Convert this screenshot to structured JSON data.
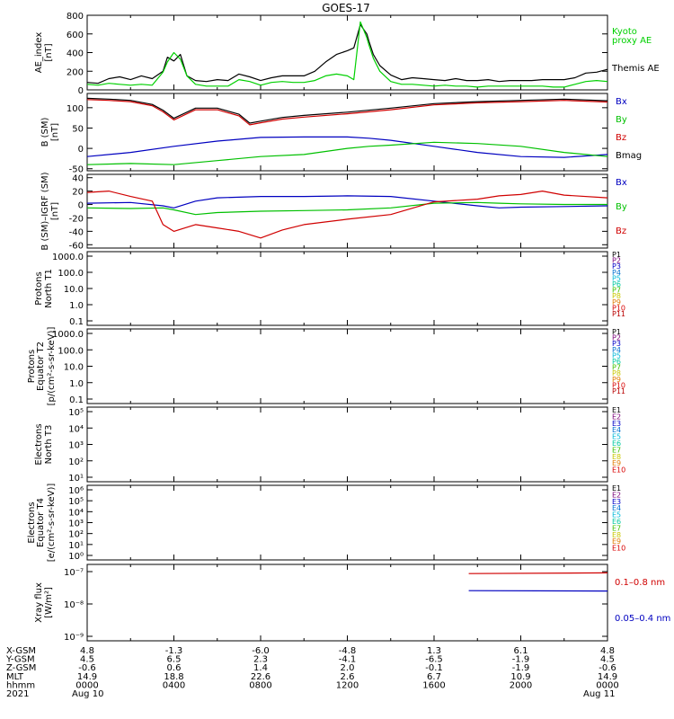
{
  "title": "GOES-17",
  "chart_data": [
    {
      "panel": "ae",
      "type": "line",
      "ylabel": [
        "AE_index",
        "[nT]"
      ],
      "ylim": [
        0,
        800
      ],
      "ticks": [
        0,
        200,
        400,
        600,
        800
      ],
      "tick_labels": [
        "0",
        "200",
        "400",
        "600",
        "800"
      ],
      "x_unit": "hours since 2021 Aug 10 00:00 UT",
      "legend": [
        {
          "lines": [
            "Kyoto",
            "proxy AE"
          ],
          "color": "#00d000"
        },
        {
          "lines": [
            "Themis AE"
          ],
          "color": "#000000"
        }
      ],
      "series": [
        {
          "name": "Themis AE",
          "color": "#000000",
          "x": [
            0,
            0.5,
            1,
            1.5,
            2,
            2.5,
            3,
            3.5,
            3.7,
            4,
            4.3,
            4.6,
            5,
            5.5,
            6,
            6.5,
            7,
            7.5,
            8,
            8.5,
            9,
            9.5,
            10,
            10.5,
            11,
            11.5,
            12,
            12.3,
            12.6,
            12.9,
            13,
            13.2,
            13.5,
            14,
            14.5,
            15,
            15.5,
            16,
            16.5,
            17,
            17.5,
            18,
            18.5,
            19,
            19.5,
            20,
            20.5,
            21,
            21.5,
            22,
            22.5,
            23,
            23.5,
            24
          ],
          "values": [
            80,
            70,
            120,
            140,
            110,
            150,
            120,
            200,
            350,
            310,
            380,
            150,
            100,
            90,
            110,
            100,
            170,
            140,
            100,
            130,
            150,
            150,
            150,
            200,
            300,
            380,
            420,
            450,
            700,
            600,
            520,
            380,
            260,
            160,
            110,
            130,
            120,
            110,
            100,
            120,
            100,
            100,
            110,
            90,
            100,
            100,
            100,
            110,
            110,
            110,
            130,
            180,
            190,
            220
          ]
        },
        {
          "name": "Kyoto proxy AE",
          "color": "#00d000",
          "x": [
            0,
            0.5,
            1,
            1.5,
            2,
            2.5,
            3,
            3.5,
            3.7,
            4,
            4.3,
            4.6,
            5,
            5.5,
            6,
            6.5,
            7,
            7.5,
            8,
            8.5,
            9,
            9.5,
            10,
            10.5,
            11,
            11.5,
            12,
            12.3,
            12.6,
            12.9,
            13,
            13.2,
            13.5,
            14,
            14.5,
            15,
            15.5,
            16,
            16.5,
            17,
            17.5,
            18,
            18.5,
            19,
            19.5,
            20,
            20.5,
            21,
            21.5,
            22,
            22.5,
            23,
            23.5,
            24
          ],
          "values": [
            60,
            50,
            70,
            60,
            50,
            60,
            50,
            190,
            300,
            400,
            330,
            150,
            60,
            40,
            40,
            40,
            110,
            90,
            50,
            80,
            90,
            80,
            80,
            100,
            150,
            170,
            150,
            110,
            730,
            560,
            480,
            340,
            200,
            90,
            60,
            60,
            50,
            40,
            50,
            40,
            40,
            30,
            40,
            40,
            40,
            40,
            40,
            40,
            30,
            30,
            60,
            90,
            100,
            90
          ]
        }
      ]
    },
    {
      "panel": "bsm",
      "type": "line",
      "ylabel": [
        "B (SM)",
        "[nT]"
      ],
      "ylim": [
        -55,
        135
      ],
      "ticks": [
        -50,
        0,
        50,
        100
      ],
      "tick_labels": [
        "-50",
        "0",
        "50",
        "100"
      ],
      "legend": [
        {
          "lines": [
            "Bx"
          ],
          "color": "#0000c0"
        },
        {
          "lines": [
            "By"
          ],
          "color": "#00c000"
        },
        {
          "lines": [
            "Bz"
          ],
          "color": "#d00000"
        },
        {
          "lines": [
            "Bmag"
          ],
          "color": "#000000"
        }
      ],
      "series": [
        {
          "name": "Bx",
          "color": "#0000c0",
          "x": [
            0,
            2,
            4,
            6,
            8,
            10,
            12,
            13,
            14,
            16,
            18,
            20,
            22,
            24
          ],
          "values": [
            -20,
            -10,
            5,
            18,
            27,
            28,
            28,
            25,
            20,
            5,
            -10,
            -20,
            -22,
            -15
          ]
        },
        {
          "name": "By",
          "color": "#00c000",
          "x": [
            0,
            2,
            4,
            6,
            8,
            10,
            12,
            13,
            14,
            16,
            18,
            20,
            22,
            24
          ],
          "values": [
            -40,
            -37,
            -40,
            -30,
            -20,
            -15,
            0,
            5,
            8,
            15,
            12,
            5,
            -10,
            -20
          ]
        },
        {
          "name": "Bz",
          "color": "#d00000",
          "x": [
            0,
            1,
            2,
            3,
            3.5,
            4,
            5,
            6,
            7,
            7.5,
            8,
            9,
            10,
            12,
            14,
            16,
            18,
            20,
            22,
            24
          ],
          "values": [
            120,
            118,
            115,
            105,
            90,
            70,
            95,
            95,
            80,
            58,
            63,
            72,
            77,
            85,
            95,
            107,
            112,
            115,
            118,
            114
          ]
        },
        {
          "name": "Bmag",
          "color": "#000000",
          "x": [
            0,
            1,
            2,
            3,
            3.5,
            4,
            5,
            6,
            7,
            7.5,
            8,
            9,
            10,
            12,
            14,
            16,
            18,
            20,
            22,
            24
          ],
          "values": [
            123,
            121,
            118,
            108,
            94,
            74,
            99,
            99,
            84,
            62,
            67,
            76,
            81,
            89,
            99,
            110,
            115,
            118,
            121,
            117
          ]
        }
      ]
    },
    {
      "panel": "bigrf",
      "type": "line",
      "ylabel": [
        "B (SM)–IGRF (SM)",
        "[nT]"
      ],
      "ylim": [
        -65,
        45
      ],
      "ticks": [
        -60,
        -40,
        -20,
        0,
        20,
        40
      ],
      "tick_labels": [
        "-60",
        "-40",
        "-20",
        "0",
        "20",
        "40"
      ],
      "legend": [
        {
          "lines": [
            "Bx"
          ],
          "color": "#0000c0"
        },
        {
          "lines": [
            "By"
          ],
          "color": "#00c000"
        },
        {
          "lines": [
            "Bz"
          ],
          "color": "#d00000"
        }
      ],
      "series": [
        {
          "name": "Bx",
          "color": "#0000c0",
          "x": [
            0,
            2,
            3.5,
            4,
            5,
            6,
            8,
            10,
            12,
            14,
            16,
            18,
            19,
            20,
            22,
            24
          ],
          "values": [
            2,
            3,
            -2,
            -5,
            5,
            10,
            12,
            12,
            13,
            12,
            5,
            -2,
            -5,
            -4,
            -3,
            -2
          ]
        },
        {
          "name": "By",
          "color": "#00c000",
          "x": [
            0,
            2,
            3.5,
            4,
            5,
            6,
            8,
            10,
            12,
            14,
            16,
            18,
            19,
            20,
            22,
            24
          ],
          "values": [
            -5,
            -6,
            -5,
            -8,
            -15,
            -12,
            -10,
            -9,
            -8,
            -5,
            2,
            3,
            2,
            1,
            0,
            0
          ]
        },
        {
          "name": "Bz",
          "color": "#d00000",
          "x": [
            0,
            1,
            2,
            3,
            3.5,
            4,
            5,
            6,
            7,
            8,
            9,
            10,
            12,
            14,
            16,
            18,
            19,
            20,
            21,
            22,
            24
          ],
          "values": [
            18,
            20,
            12,
            5,
            -30,
            -40,
            -30,
            -35,
            -40,
            -50,
            -38,
            -30,
            -22,
            -15,
            4,
            8,
            13,
            15,
            20,
            14,
            10
          ]
        }
      ]
    },
    {
      "panel": "protons-t1",
      "type": "line",
      "scale": "log",
      "ylabel": [
        "Protons",
        "North T1"
      ],
      "ticks": [
        "1000.0",
        "100.0",
        "10.0",
        "1.0",
        "0.1"
      ],
      "channels": [
        "P1",
        "P2",
        "P3",
        "P4",
        "P5",
        "P6",
        "P7",
        "P8",
        "P9",
        "P10",
        "P11"
      ]
    },
    {
      "panel": "protons-t2",
      "type": "line",
      "scale": "log",
      "ylabel": [
        "Protons",
        "Equator T2",
        "[p/(cm²-s-sr-keV)]"
      ],
      "ticks": [
        "1000.0",
        "100.0",
        "10.0",
        "1.0",
        "0.1"
      ],
      "channels": [
        "P1",
        "P2",
        "P3",
        "P4",
        "P5",
        "P6",
        "P7",
        "P8",
        "P9",
        "P10",
        "P11"
      ]
    },
    {
      "panel": "electrons-t3",
      "type": "line",
      "scale": "log",
      "ylabel": [
        "Electrons",
        "North T3"
      ],
      "ticks": [
        "10⁵",
        "10⁴",
        "10³",
        "10²",
        "10¹"
      ],
      "channels": [
        "E1",
        "E2",
        "E3",
        "E4",
        "E5",
        "E6",
        "E7",
        "E8",
        "E9",
        "E10"
      ]
    },
    {
      "panel": "electrons-t4",
      "type": "line",
      "scale": "log",
      "ylabel": [
        "Electrons",
        "Equator T4",
        "[e/(cm²-s-sr-keV)]"
      ],
      "ticks": [
        "10⁶",
        "10⁵",
        "10⁴",
        "10³",
        "10²",
        "10¹",
        "10⁰"
      ],
      "channels": [
        "E1",
        "E2",
        "E3",
        "E4",
        "E5",
        "E6",
        "E7",
        "E8",
        "E9",
        "E10"
      ]
    },
    {
      "panel": "xray",
      "type": "line",
      "scale": "log",
      "ylabel": [
        "Xray flux",
        "[W/m²]"
      ],
      "ylim_log10": [
        -9,
        -7
      ],
      "ticks": [
        "10⁻⁷",
        "10⁻⁸",
        "10⁻⁹"
      ],
      "legend": [
        {
          "lines": [
            "0.1–0.8 nm"
          ],
          "color": "#d00000"
        },
        {
          "lines": [
            "0.05–0.4 nm"
          ],
          "color": "#0000c0"
        }
      ],
      "series": [
        {
          "name": "0.1–0.8 nm",
          "color": "#d00000",
          "x": [
            17.6,
            24
          ],
          "log10_values": [
            -7.06,
            -7.04
          ]
        },
        {
          "name": "0.05–0.4 nm",
          "color": "#0000c0",
          "x": [
            17.6,
            24
          ],
          "log10_values": [
            -7.59,
            -7.6
          ]
        }
      ]
    }
  ],
  "orbit": {
    "rows": [
      {
        "label": "X-GSM",
        "values": [
          "4.8",
          "-1.3",
          "-6.0",
          "-4.8",
          "1.3",
          "6.1",
          "4.8"
        ]
      },
      {
        "label": "Y-GSM",
        "values": [
          "4.5",
          "6.5",
          "2.3",
          "-4.1",
          "-6.5",
          "-1.9",
          "4.5"
        ]
      },
      {
        "label": "Z-GSM",
        "values": [
          "-0.6",
          "0.6",
          "1.4",
          "2.0",
          "-0.1",
          "-1.9",
          "-0.6"
        ]
      },
      {
        "label": "MLT",
        "values": [
          "14.9",
          "18.8",
          "22.6",
          "2.6",
          "6.7",
          "10.9",
          "14.9"
        ]
      },
      {
        "label": "hhmm",
        "values": [
          "0000",
          "0400",
          "0800",
          "1200",
          "1600",
          "2000",
          "0000"
        ]
      },
      {
        "label": "2021",
        "values": [
          "Aug 10",
          "",
          "",
          "",
          "",
          "",
          "Aug 11"
        ]
      }
    ]
  }
}
